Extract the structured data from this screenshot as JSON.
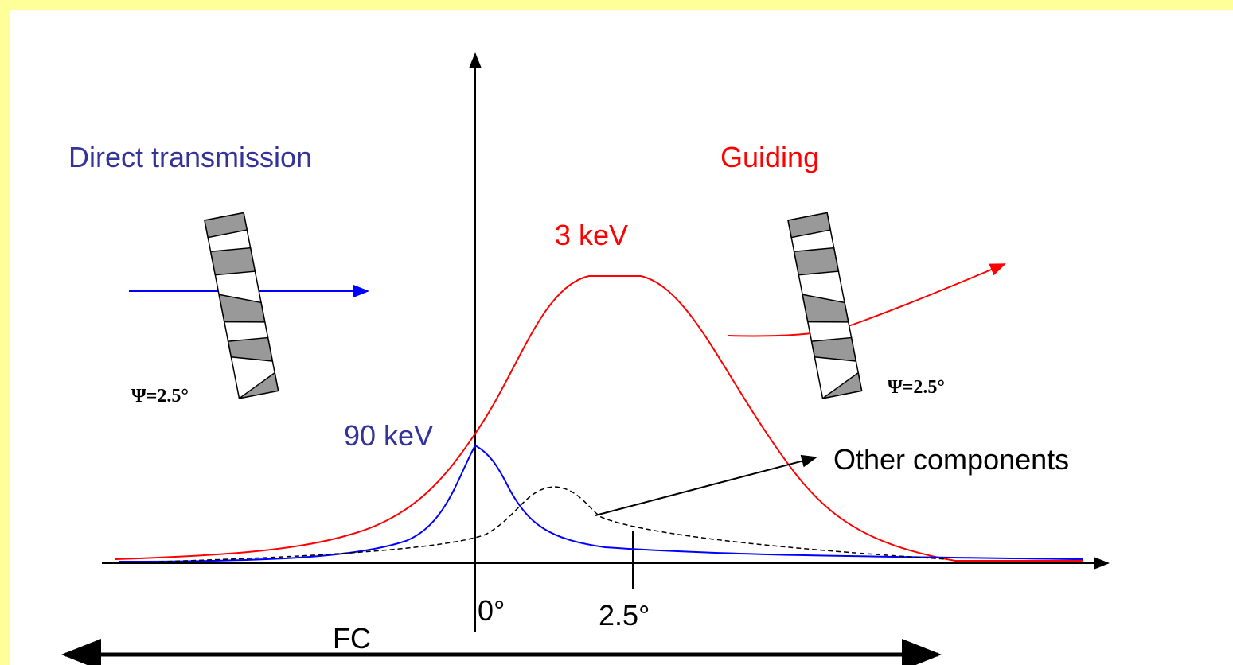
{
  "labels": {
    "direct": "Direct transmission",
    "guiding": "Guiding",
    "kev3": "3 keV",
    "kev90": "90 keV",
    "other": "Other components",
    "psi_left": "Ψ=2.5°",
    "psi_right": "Ψ=2.5°",
    "tick0": "0°",
    "tick25": "2.5°",
    "fc": "FC"
  }
}
